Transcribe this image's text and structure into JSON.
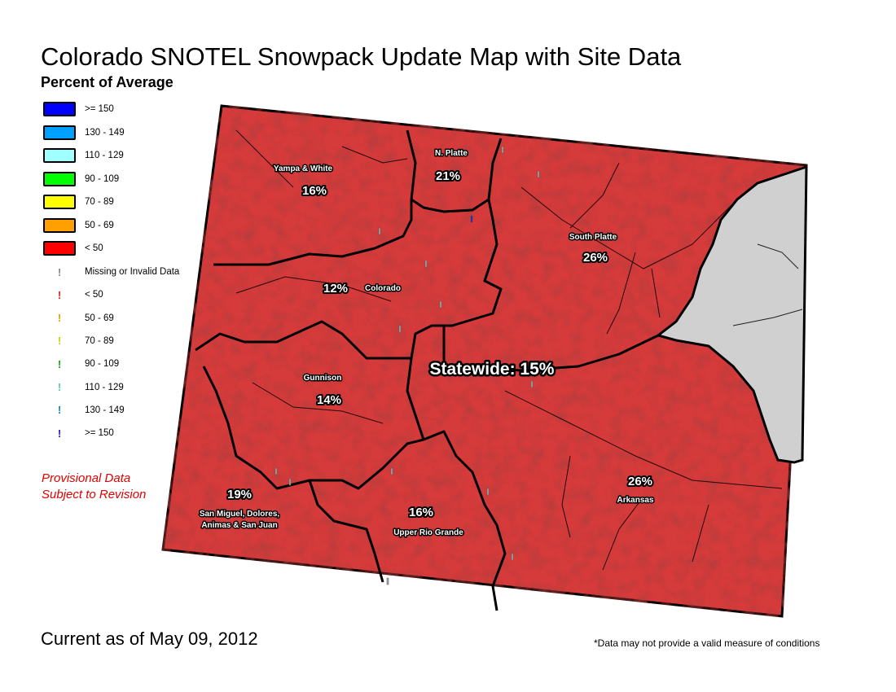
{
  "title": "Colorado SNOTEL Snowpack Update Map with Site Data",
  "subtitle": "Percent of Average",
  "legend": {
    "basin_classes": [
      {
        "label": ">= 150",
        "color": "#0000ff"
      },
      {
        "label": "130 - 149",
        "color": "#00a0ff"
      },
      {
        "label": "110 - 129",
        "color": "#a0ffff"
      },
      {
        "label": "90 - 109",
        "color": "#00ff00"
      },
      {
        "label": "70 - 89",
        "color": "#ffff00"
      },
      {
        "label": "50 - 69",
        "color": "#ffa000"
      },
      {
        "label": "< 50",
        "color": "#ff0000"
      }
    ],
    "site_classes": [
      {
        "label": "Missing or Invalid Data",
        "color": "#888888"
      },
      {
        "label": "< 50",
        "color": "#e02020"
      },
      {
        "label": "50 - 69",
        "color": "#e0a000"
      },
      {
        "label": "70 - 89",
        "color": "#d0d000"
      },
      {
        "label": "90 - 109",
        "color": "#20a020"
      },
      {
        "label": "110 - 129",
        "color": "#60c0c0"
      },
      {
        "label": "130 - 149",
        "color": "#2080c0"
      },
      {
        "label": ">= 150",
        "color": "#2020c0"
      }
    ]
  },
  "provisional": {
    "line1": "Provisional Data",
    "line2": "Subject to Revision"
  },
  "map": {
    "basin_fill": "#d63a3a",
    "no_data_fill": "#d0d0d0",
    "statewide": "Statewide: 15%",
    "basins": [
      {
        "name": "Yampa & White",
        "percent": "16%"
      },
      {
        "name": "N. Platte",
        "percent": "21%"
      },
      {
        "name": "South Platte",
        "percent": "26%"
      },
      {
        "name": "Colorado",
        "percent": "12%"
      },
      {
        "name": "Gunnison",
        "percent": "14%"
      },
      {
        "name": "Arkansas",
        "percent": "26%"
      },
      {
        "name": "Upper Rio Grande",
        "percent": "16%"
      },
      {
        "name": "San Miguel, Dolores,",
        "name2": "Animas & San Juan",
        "percent": "19%"
      }
    ]
  },
  "current_as_of": "Current as of May 09, 2012",
  "footnote": "*Data may not provide a valid measure of conditions"
}
